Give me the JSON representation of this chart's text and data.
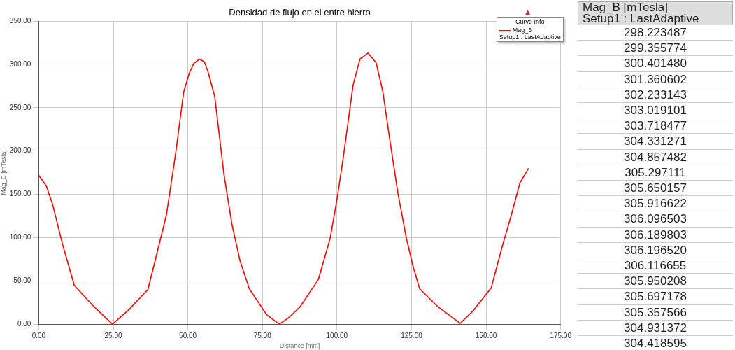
{
  "chart_data": [
    {
      "type": "line",
      "title": "Densidad de flujo en el entre hierro",
      "xlabel": "Distance [mm]",
      "ylabel": "Mag_B [mTesla]",
      "legend_title": "Curve Info",
      "legend": "top right",
      "grid": true,
      "marker": "none",
      "line_style": "solid",
      "xlim": [
        0,
        175
      ],
      "ylim": [
        0,
        350
      ],
      "xticks": [
        {
          "value": 0,
          "label": "0.00"
        },
        {
          "value": 25,
          "label": "25.00"
        },
        {
          "value": 50,
          "label": "50.00"
        },
        {
          "value": 75,
          "label": "75.00"
        },
        {
          "value": 100,
          "label": "100.00"
        },
        {
          "value": 125,
          "label": "125.00"
        },
        {
          "value": 150,
          "label": "150.00"
        },
        {
          "value": 175,
          "label": "175.00"
        }
      ],
      "yticks": [
        {
          "value": 0,
          "label": "0.00"
        },
        {
          "value": 50,
          "label": "50.00"
        },
        {
          "value": 100,
          "label": "100.00"
        },
        {
          "value": 150,
          "label": "150.00"
        },
        {
          "value": 200,
          "label": "200.00"
        },
        {
          "value": 250,
          "label": "250.00"
        },
        {
          "value": 300,
          "label": "300.00"
        },
        {
          "value": 350,
          "label": "350.00"
        }
      ],
      "series": [
        {
          "name": "Mag_B\nSetup1 : LastAdaptive",
          "color": "#ff0000",
          "x": [
            0,
            2.5,
            4.6,
            8,
            11.9,
            18,
            24.7,
            30,
            36.6,
            39.5,
            42.8,
            45.9,
            48.6,
            50.5,
            52,
            53.9,
            55.5,
            56.7,
            59,
            62.1,
            64.8,
            67.5,
            70.6,
            76.4,
            80.7,
            84,
            87.6,
            93.8,
            97.7,
            100,
            102.3,
            105.4,
            107.7,
            110.4,
            113.1,
            115.4,
            117.7,
            120.4,
            123.1,
            125.4,
            127.7,
            133.9,
            141.3,
            145.5,
            151.7,
            155.5,
            158.6,
            161.3,
            164.2
          ],
          "values": [
            172,
            160,
            139,
            92,
            45,
            22,
            0,
            16,
            40,
            80,
            126,
            197,
            268,
            290,
            301,
            306,
            303,
            292,
            263,
            173,
            115,
            73,
            41,
            11,
            0,
            8,
            20,
            52,
            99,
            144,
            197,
            276,
            306,
            313,
            302,
            268,
            213,
            152,
            102,
            68,
            41,
            20,
            1,
            15,
            42,
            91,
            128,
            163,
            180
          ]
        }
      ]
    },
    {
      "type": "other",
      "title": "Mag_B [mTesla]",
      "subtitle": "Setup1 : LastAdaptive",
      "annotations": [
        "298.223487",
        "299.355774",
        "300.401480",
        "301.360602",
        "302.233143",
        "303.019101",
        "303.718477",
        "304.331271",
        "304.857482",
        "305.297111",
        "305.650157",
        "305.916622",
        "306.096503",
        "306.189803",
        "306.196520",
        "306.116655",
        "305.950208",
        "305.697178",
        "305.357566",
        "304.931372",
        "304.418595"
      ]
    }
  ]
}
